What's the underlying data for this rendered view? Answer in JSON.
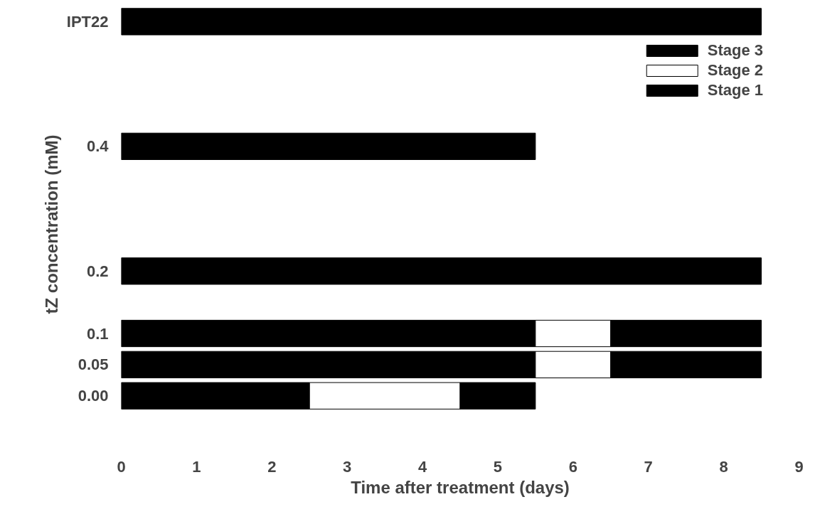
{
  "chart_data": {
    "type": "bar",
    "orientation": "horizontal",
    "stacked": true,
    "xlabel": "Time after treatment (days)",
    "ylabel": "tZ concentration (mM)",
    "categories": [
      "IPT22",
      null,
      null,
      null,
      "0.4",
      null,
      null,
      null,
      "0.2",
      null,
      "0.1",
      "0.05",
      "0.00"
    ],
    "series": [
      {
        "name": "Stage 1",
        "color": "#000000",
        "values": [
          8.5,
          null,
          null,
          null,
          5.5,
          null,
          null,
          null,
          8.5,
          null,
          5.5,
          5.5,
          2.5
        ]
      },
      {
        "name": "Stage 2",
        "color": "#ffffff",
        "values": [
          null,
          null,
          null,
          null,
          null,
          null,
          null,
          null,
          null,
          null,
          1,
          1,
          2
        ]
      },
      {
        "name": "Stage 3",
        "color": "#000000",
        "values": [
          null,
          null,
          null,
          null,
          null,
          null,
          null,
          null,
          null,
          null,
          2,
          2,
          1
        ]
      }
    ],
    "xlim": [
      0,
      9
    ],
    "xticks": [
      0,
      1,
      2,
      3,
      4,
      5,
      6,
      7,
      8,
      9
    ],
    "legend": "top right"
  }
}
